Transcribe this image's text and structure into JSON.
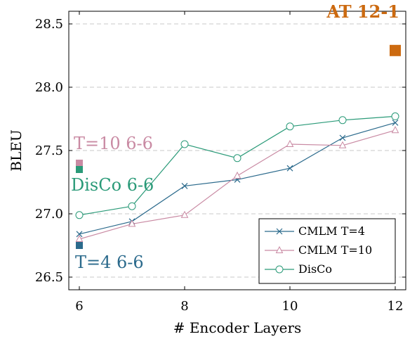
{
  "chart_data": {
    "type": "line",
    "title": "",
    "xlabel": "# Encoder Layers",
    "ylabel": "BLEU",
    "xlim": [
      5.8,
      12.2
    ],
    "ylim": [
      26.4,
      28.6
    ],
    "x_ticks": [
      6,
      8,
      10,
      12
    ],
    "y_ticks": [
      26.5,
      27.0,
      27.5,
      28.0,
      28.5
    ],
    "x_tick_labels": [
      "6",
      "8",
      "10",
      "12"
    ],
    "y_tick_labels": [
      "26.5",
      "27.0",
      "27.5",
      "28.0",
      "28.5"
    ],
    "grid": "horizontal-dashed",
    "legend_position": "bottom-right",
    "x": [
      6,
      7,
      8,
      9,
      10,
      11,
      12
    ],
    "series": [
      {
        "name": "CMLM T=4",
        "marker": "x",
        "color": "#2b6a8c",
        "values": [
          26.84,
          26.94,
          27.22,
          27.27,
          27.36,
          27.6,
          27.72
        ]
      },
      {
        "name": "CMLM T=10",
        "marker": "triangle",
        "color": "#c98aa3",
        "values": [
          26.8,
          26.92,
          26.99,
          27.3,
          27.55,
          27.54,
          27.66
        ]
      },
      {
        "name": "DisCo",
        "marker": "circle",
        "color": "#2a9a78",
        "values": [
          26.99,
          27.06,
          27.55,
          27.44,
          27.69,
          27.74,
          27.77
        ]
      }
    ],
    "annotations": [
      {
        "text": "AT 12-1",
        "x": 12,
        "y": 28.29,
        "color": "#cc6a10",
        "bold": true,
        "label_anchor": "end"
      },
      {
        "text": "T=10 6-6",
        "x": 6,
        "y": 27.4,
        "color": "#c98aa3",
        "bold": false,
        "label_anchor": "start"
      },
      {
        "text": "DisCo 6-6",
        "x": 6,
        "y": 27.35,
        "color": "#2a9a78",
        "bold": false,
        "label_anchor": "start"
      },
      {
        "text": "T=4 6-6",
        "x": 6,
        "y": 26.75,
        "color": "#2b6a8c",
        "bold": false,
        "label_anchor": "start"
      }
    ]
  }
}
